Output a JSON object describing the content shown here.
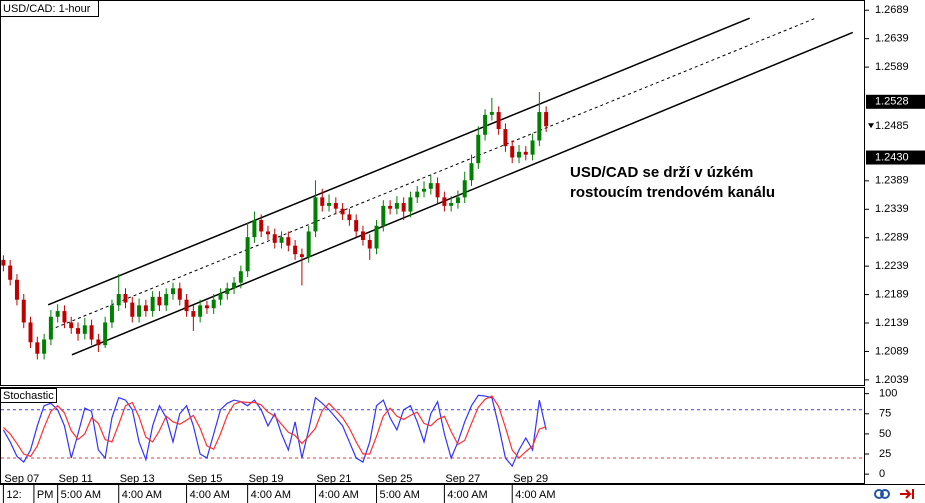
{
  "chart_data": {
    "type": "candlestick",
    "title": "USD/CAD: 1-hour",
    "annotation": [
      "USD/CAD se drží v úzkém",
      "rostoucím trendovém kanálu"
    ],
    "xlim": [
      -0.5,
      127
    ],
    "ylim": [
      1.203,
      1.2707
    ],
    "yticks": [
      1.2689,
      1.2639,
      1.2589,
      1.2389,
      1.2339,
      1.2289,
      1.2239,
      1.2189,
      1.2139,
      1.2089,
      1.2039
    ],
    "price_markers": [
      1.2528,
      {
        "value": 1.243,
        "label": "1.2430"
      }
    ],
    "last_price": 1.2485,
    "up_color": "#008000",
    "down_color": "#c00000",
    "date_ticks": [
      {
        "value": 0,
        "label": "Sep 07"
      },
      {
        "value": 8,
        "label": "Sep 11"
      },
      {
        "value": 17,
        "label": "Sep 13"
      },
      {
        "value": 27,
        "label": "Sep 15"
      },
      {
        "value": 36,
        "label": "Sep 19"
      },
      {
        "value": 46,
        "label": "Sep 21"
      },
      {
        "value": 55,
        "label": "Sep 25"
      },
      {
        "value": 65,
        "label": "Sep 27"
      },
      {
        "value": 75,
        "label": "Sep 29"
      }
    ],
    "time_ticks": [
      {
        "value": 0,
        "label": "12:"
      },
      {
        "value": 4.5,
        "label": "PM"
      },
      {
        "value": 8,
        "label": "5:00 AM"
      },
      {
        "value": 17,
        "label": "4:00 AM"
      },
      {
        "value": 27,
        "label": "4:00 AM"
      },
      {
        "value": 36,
        "label": "4:00 AM"
      },
      {
        "value": 46,
        "label": "4:00 AM"
      },
      {
        "value": 55,
        "label": "5:00 AM"
      },
      {
        "value": 65,
        "label": "4:00 AM"
      },
      {
        "value": 75,
        "label": "4:00 AM"
      }
    ],
    "trendlines": [
      {
        "x": [
          6.6,
          110
        ],
        "y": [
          1.2171,
          1.2675
        ],
        "style": "solid"
      },
      {
        "x": [
          6.9,
          119.7
        ],
        "y": [
          1.2127,
          1.2675
        ],
        "style": "dashed"
      },
      {
        "x": [
          10.1,
          125.2
        ],
        "y": [
          1.2083,
          1.265
        ],
        "style": "solid"
      }
    ],
    "ohlc": [
      [
        1.225,
        1.2258,
        1.223,
        1.224
      ],
      [
        1.224,
        1.225,
        1.2205,
        1.2215
      ],
      [
        1.2215,
        1.2225,
        1.217,
        1.218
      ],
      [
        1.218,
        1.219,
        1.213,
        1.214
      ],
      [
        1.214,
        1.215,
        1.2095,
        1.2105
      ],
      [
        1.2105,
        1.2115,
        1.2075,
        1.2085
      ],
      [
        1.2085,
        1.212,
        1.2075,
        1.211
      ],
      [
        1.211,
        1.2162,
        1.21,
        1.215
      ],
      [
        1.215,
        1.2172,
        1.214,
        1.216
      ],
      [
        1.216,
        1.217,
        1.213,
        1.214
      ],
      [
        1.214,
        1.215,
        1.212,
        1.213
      ],
      [
        1.213,
        1.214,
        1.2108,
        1.212
      ],
      [
        1.212,
        1.2148,
        1.211,
        1.2135
      ],
      [
        1.2135,
        1.2145,
        1.21,
        1.211
      ],
      [
        1.211,
        1.212,
        1.2088,
        1.21
      ],
      [
        1.21,
        1.215,
        1.2095,
        1.214
      ],
      [
        1.214,
        1.218,
        1.213,
        1.217
      ],
      [
        1.217,
        1.2225,
        1.216,
        1.219
      ],
      [
        1.219,
        1.22,
        1.2165,
        1.2175
      ],
      [
        1.2175,
        1.2185,
        1.214,
        1.215
      ],
      [
        1.215,
        1.2182,
        1.214,
        1.217
      ],
      [
        1.217,
        1.218,
        1.215,
        1.216
      ],
      [
        1.216,
        1.2195,
        1.215,
        1.2185
      ],
      [
        1.2185,
        1.2195,
        1.216,
        1.217
      ],
      [
        1.217,
        1.22,
        1.216,
        1.219
      ],
      [
        1.219,
        1.221,
        1.218,
        1.22
      ],
      [
        1.22,
        1.221,
        1.217,
        1.218
      ],
      [
        1.218,
        1.219,
        1.215,
        1.216
      ],
      [
        1.216,
        1.217,
        1.2125,
        1.215
      ],
      [
        1.215,
        1.218,
        1.214,
        1.217
      ],
      [
        1.217,
        1.2178,
        1.2155,
        1.2165
      ],
      [
        1.2165,
        1.219,
        1.2155,
        1.218
      ],
      [
        1.218,
        1.22,
        1.217,
        1.219
      ],
      [
        1.219,
        1.221,
        1.218,
        1.22
      ],
      [
        1.22,
        1.222,
        1.219,
        1.221
      ],
      [
        1.221,
        1.224,
        1.22,
        1.223
      ],
      [
        1.223,
        1.2315,
        1.222,
        1.229
      ],
      [
        1.229,
        1.2335,
        1.228,
        1.232
      ],
      [
        1.232,
        1.233,
        1.229,
        1.23
      ],
      [
        1.23,
        1.231,
        1.2285,
        1.2295
      ],
      [
        1.2295,
        1.2305,
        1.227,
        1.228
      ],
      [
        1.228,
        1.23,
        1.227,
        1.229
      ],
      [
        1.229,
        1.23,
        1.2265,
        1.2275
      ],
      [
        1.2275,
        1.2285,
        1.225,
        1.226
      ],
      [
        1.226,
        1.227,
        1.2205,
        1.2255
      ],
      [
        1.2255,
        1.231,
        1.2245,
        1.23
      ],
      [
        1.23,
        1.239,
        1.229,
        1.236
      ],
      [
        1.236,
        1.2375,
        1.2335,
        1.2345
      ],
      [
        1.2345,
        1.2365,
        1.2335,
        1.235
      ],
      [
        1.235,
        1.236,
        1.233,
        1.234
      ],
      [
        1.234,
        1.235,
        1.232,
        1.233
      ],
      [
        1.233,
        1.234,
        1.231,
        1.232
      ],
      [
        1.232,
        1.233,
        1.229,
        1.23
      ],
      [
        1.23,
        1.231,
        1.2275,
        1.2285
      ],
      [
        1.2285,
        1.2295,
        1.225,
        1.227
      ],
      [
        1.227,
        1.232,
        1.226,
        1.231
      ],
      [
        1.231,
        1.2355,
        1.23,
        1.2345
      ],
      [
        1.2345,
        1.2355,
        1.233,
        1.234
      ],
      [
        1.234,
        1.2362,
        1.233,
        1.235
      ],
      [
        1.235,
        1.236,
        1.232,
        1.2335
      ],
      [
        1.2335,
        1.237,
        1.2325,
        1.236
      ],
      [
        1.236,
        1.238,
        1.235,
        1.237
      ],
      [
        1.237,
        1.2388,
        1.236,
        1.2375
      ],
      [
        1.2375,
        1.24,
        1.2365,
        1.2385
      ],
      [
        1.2385,
        1.2395,
        1.235,
        1.236
      ],
      [
        1.236,
        1.237,
        1.2335,
        1.2345
      ],
      [
        1.2345,
        1.2362,
        1.2335,
        1.235
      ],
      [
        1.235,
        1.2372,
        1.234,
        1.236
      ],
      [
        1.236,
        1.2405,
        1.235,
        1.239
      ],
      [
        1.239,
        1.2435,
        1.238,
        1.242
      ],
      [
        1.242,
        1.2485,
        1.241,
        1.247
      ],
      [
        1.247,
        1.2515,
        1.246,
        1.2505
      ],
      [
        1.2505,
        1.2535,
        1.2495,
        1.251
      ],
      [
        1.251,
        1.252,
        1.247,
        1.248
      ],
      [
        1.248,
        1.249,
        1.244,
        1.245
      ],
      [
        1.245,
        1.246,
        1.242,
        1.243
      ],
      [
        1.243,
        1.2452,
        1.242,
        1.244
      ],
      [
        1.244,
        1.245,
        1.2425,
        1.2435
      ],
      [
        1.2435,
        1.2472,
        1.2425,
        1.246
      ],
      [
        1.246,
        1.2545,
        1.245,
        1.251
      ],
      [
        1.251,
        1.252,
        1.2475,
        1.2485
      ]
    ],
    "stochastic": {
      "title": "Stochastic",
      "ylim": [
        -11,
        107
      ],
      "yticks": [
        100,
        75,
        50,
        25,
        0
      ],
      "levels": [
        {
          "value": 80,
          "color": "#4040ff"
        },
        {
          "value": 20,
          "color": "#ff3030"
        }
      ],
      "series": [
        {
          "color": "#3333ff",
          "values": [
            55,
            40,
            22,
            15,
            30,
            60,
            85,
            88,
            80,
            60,
            20,
            50,
            82,
            78,
            30,
            20,
            70,
            95,
            92,
            80,
            40,
            18,
            60,
            85,
            70,
            40,
            75,
            85,
            60,
            25,
            20,
            50,
            80,
            88,
            92,
            90,
            85,
            92,
            80,
            60,
            75,
            50,
            30,
            65,
            20,
            55,
            95,
            88,
            80,
            70,
            60,
            40,
            20,
            15,
            40,
            85,
            92,
            70,
            55,
            80,
            85,
            65,
            40,
            75,
            90,
            50,
            20,
            40,
            65,
            85,
            98,
            97,
            95,
            60,
            20,
            10,
            30,
            45,
            30,
            92,
            55
          ]
        },
        {
          "color": "#ff3030",
          "values": [
            58,
            50,
            38,
            25,
            22,
            35,
            58,
            78,
            85,
            76,
            54,
            43,
            50,
            70,
            63,
            43,
            40,
            62,
            85,
            89,
            71,
            46,
            40,
            54,
            72,
            65,
            62,
            67,
            73,
            57,
            35,
            31,
            50,
            73,
            87,
            90,
            89,
            89,
            86,
            77,
            72,
            62,
            52,
            48,
            38,
            47,
            57,
            79,
            88,
            79,
            70,
            57,
            40,
            25,
            25,
            47,
            72,
            82,
            72,
            68,
            73,
            77,
            63,
            60,
            68,
            72,
            53,
            37,
            42,
            63,
            83,
            93,
            97,
            84,
            58,
            30,
            20,
            28,
            35,
            56,
            59
          ]
        }
      ]
    }
  }
}
